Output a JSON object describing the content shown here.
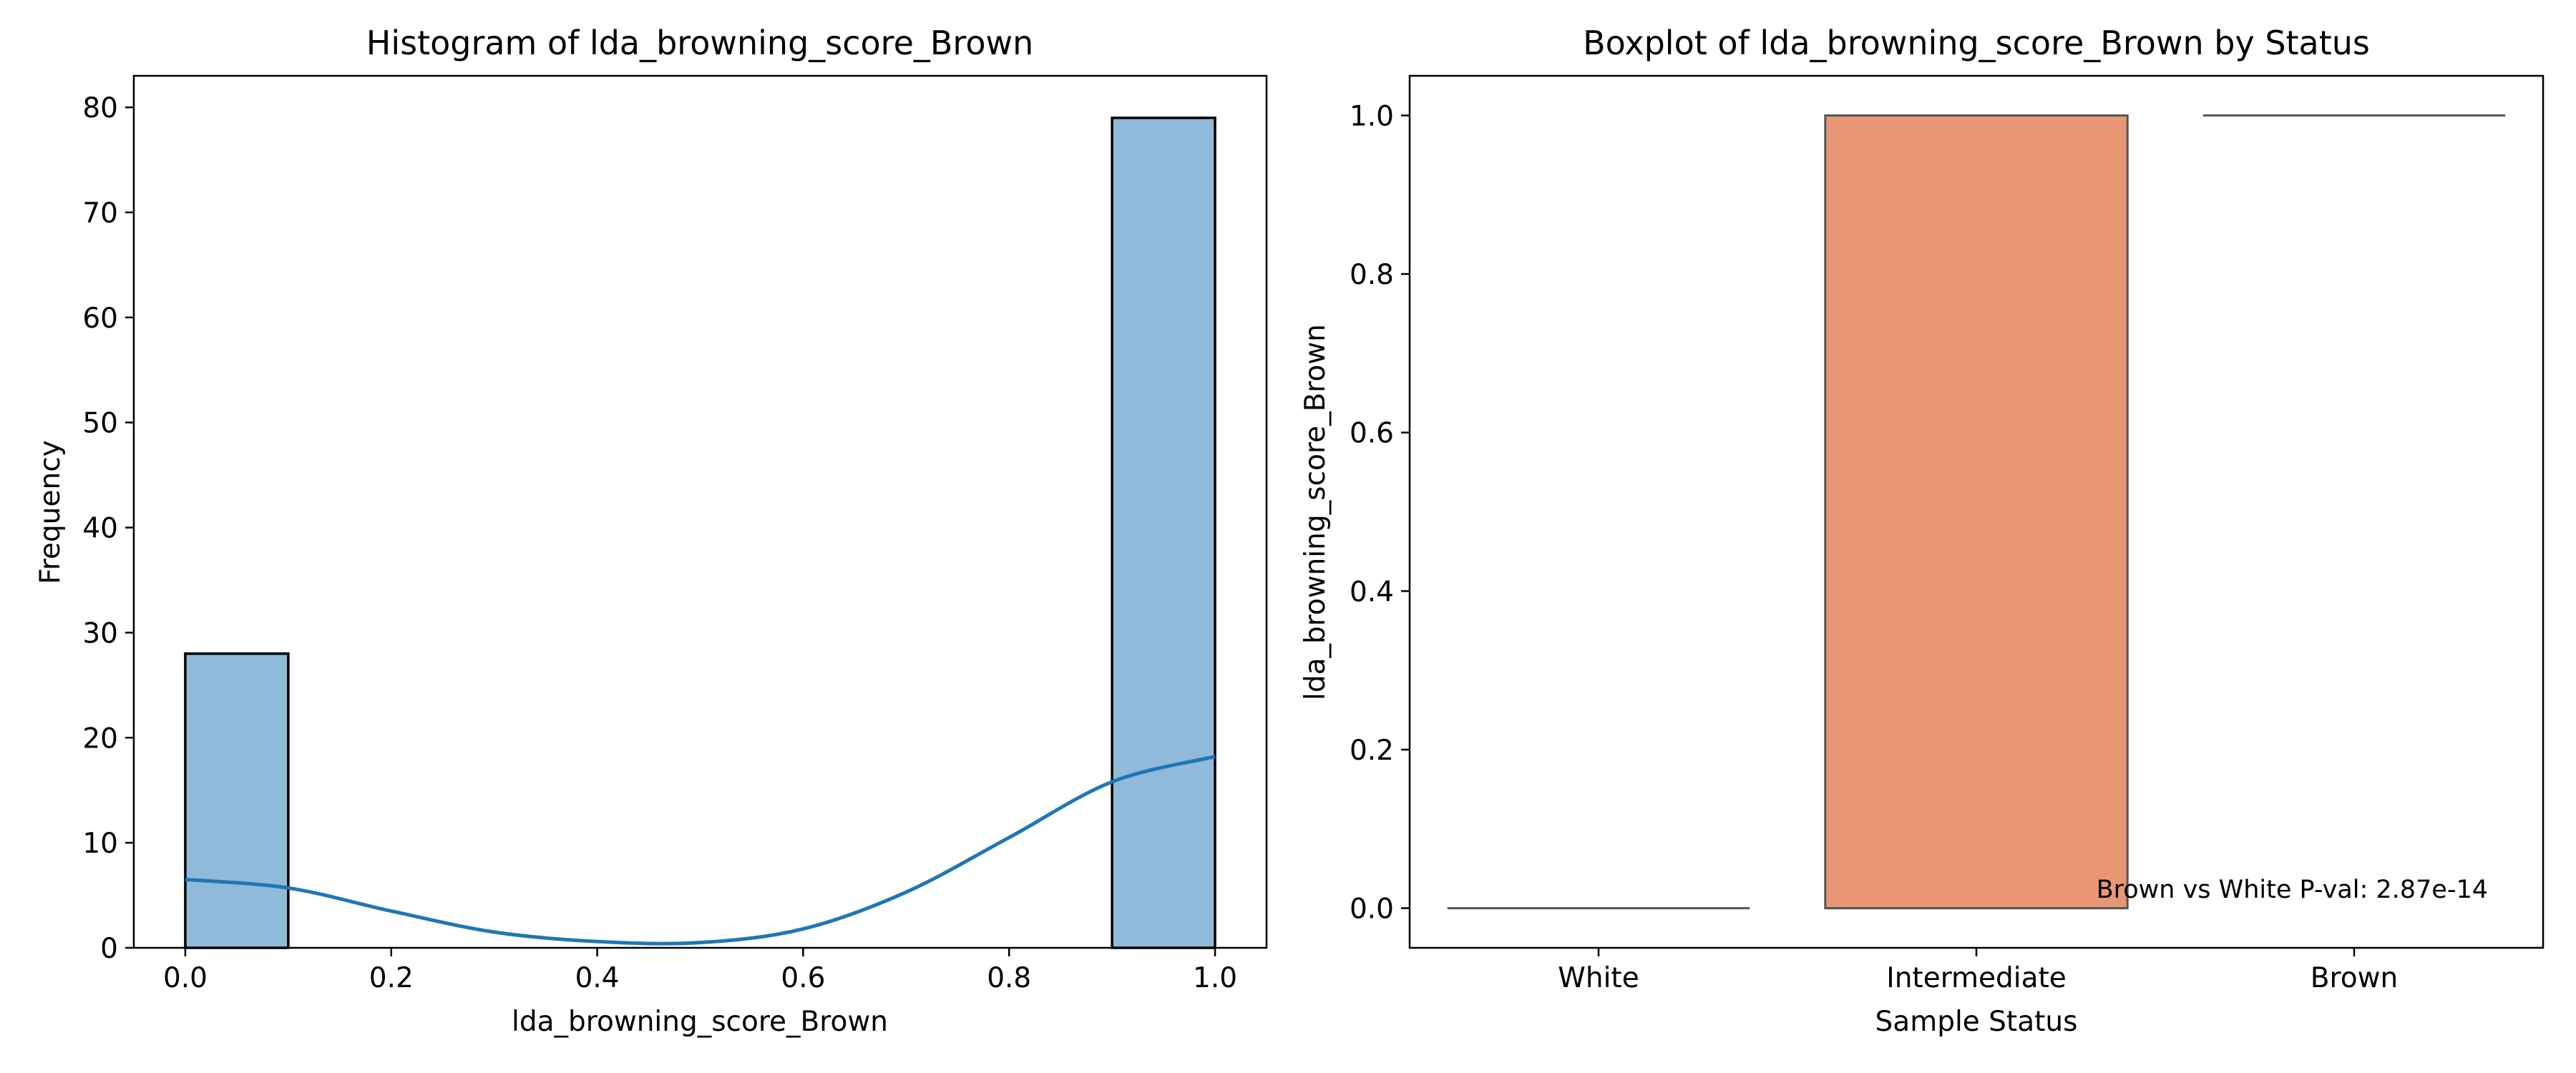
{
  "chart_data": [
    {
      "type": "bar",
      "subtype": "histogram",
      "title": "Histogram of lda_browning_score_Brown",
      "xlabel": "lda_browning_score_Brown",
      "ylabel": "Frequency",
      "xlim": [
        -0.05,
        1.05
      ],
      "ylim": [
        0,
        83
      ],
      "xticks": [
        0.0,
        0.2,
        0.4,
        0.6,
        0.8,
        1.0
      ],
      "xtick_labels": [
        "0.0",
        "0.2",
        "0.4",
        "0.6",
        "0.8",
        "1.0"
      ],
      "yticks": [
        0,
        10,
        20,
        30,
        40,
        50,
        60,
        70,
        80
      ],
      "ytick_labels": [
        "0",
        "10",
        "20",
        "30",
        "40",
        "50",
        "60",
        "70",
        "80"
      ],
      "bin_edges": [
        0.0,
        0.1,
        0.2,
        0.3,
        0.4,
        0.5,
        0.6,
        0.7,
        0.8,
        0.9,
        1.0
      ],
      "counts": [
        28,
        0,
        0,
        0,
        0,
        0,
        0,
        0,
        0,
        79
      ],
      "kde": {
        "x": [
          0.0,
          0.1,
          0.2,
          0.3,
          0.4,
          0.5,
          0.6,
          0.7,
          0.8,
          0.9,
          1.0
        ],
        "y": [
          6.5,
          5.7,
          3.5,
          1.5,
          0.6,
          0.5,
          1.8,
          5.3,
          10.5,
          15.8,
          18.2
        ]
      },
      "bar_color": "#8fbad9",
      "edge_color": "#000000",
      "kde_color": "#1f77b4",
      "grid": false
    },
    {
      "type": "box",
      "title": "Boxplot of lda_browning_score_Brown by Status",
      "xlabel": "Sample Status",
      "ylabel": "lda_browning_score_Brown",
      "ylim": [
        -0.05,
        1.05
      ],
      "yticks": [
        0.0,
        0.2,
        0.4,
        0.6,
        0.8,
        1.0
      ],
      "ytick_labels": [
        "0.0",
        "0.2",
        "0.4",
        "0.6",
        "0.8",
        "1.0"
      ],
      "categories": [
        "White",
        "Intermediate",
        "Brown"
      ],
      "boxes": [
        {
          "category": "White",
          "min": 0.0,
          "q1": 0.0,
          "median": 0.0,
          "q3": 0.0,
          "max": 0.0
        },
        {
          "category": "Intermediate",
          "min": 0.0,
          "q1": 0.0,
          "median": 0.0,
          "q3": 1.0,
          "max": 1.0
        },
        {
          "category": "Brown",
          "min": 1.0,
          "q1": 1.0,
          "median": 1.0,
          "q3": 1.0,
          "max": 1.0
        }
      ],
      "box_color": "#e99675",
      "line_color": "#555555",
      "annotation": "Brown vs White P-val: 2.87e-14",
      "annotation_position": "bottom-right",
      "grid": false
    }
  ]
}
